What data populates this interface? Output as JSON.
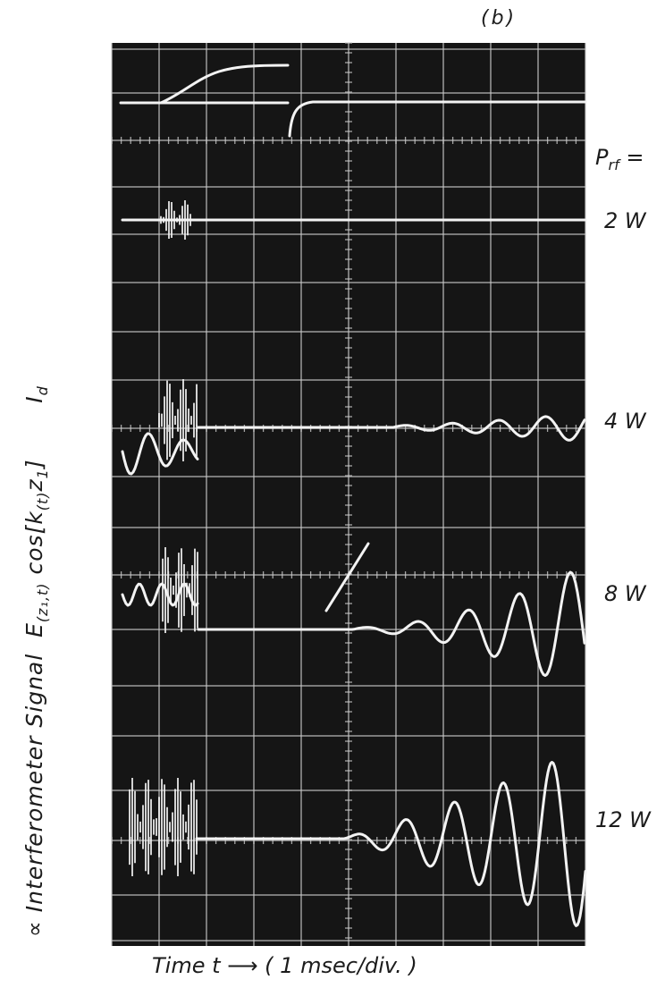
{
  "figure": {
    "panel_label": "(b)",
    "ylabel_id": "I",
    "ylabel_id_sub": "d",
    "prf_label": "P",
    "prf_sub": "rf",
    "prf_eq": "=",
    "ylabel_e": "E",
    "ylabel_e_sub": "(z₁,t)",
    "ylabel_cos": "cos[k",
    "ylabel_cos_sub1": "(t)",
    "ylabel_cos_mid": "z",
    "ylabel_cos_sub2": "1",
    "ylabel_cos_end": "]",
    "ylabel_rest": "∝   Interferometer  Signal",
    "xlabel": "Time  t  ⟶      ( 1 msec/div. )"
  },
  "chart_data": {
    "type": "line",
    "x_unit": "msec",
    "x_per_div": 1,
    "x_divisions": 10,
    "traces": [
      {
        "label": "",
        "shape": "discharge-current"
      },
      {
        "label": "2 W",
        "power_W": 2
      },
      {
        "label": "4 W",
        "power_W": 4
      },
      {
        "label": "8 W",
        "power_W": 8
      },
      {
        "label": "12 W",
        "power_W": 12
      }
    ],
    "colors": {
      "screen": "#151515",
      "grid": "#c9c9c9",
      "trace": "#f3f3f3",
      "paper": "#ffffff",
      "ink": "#1c1c1c"
    }
  }
}
